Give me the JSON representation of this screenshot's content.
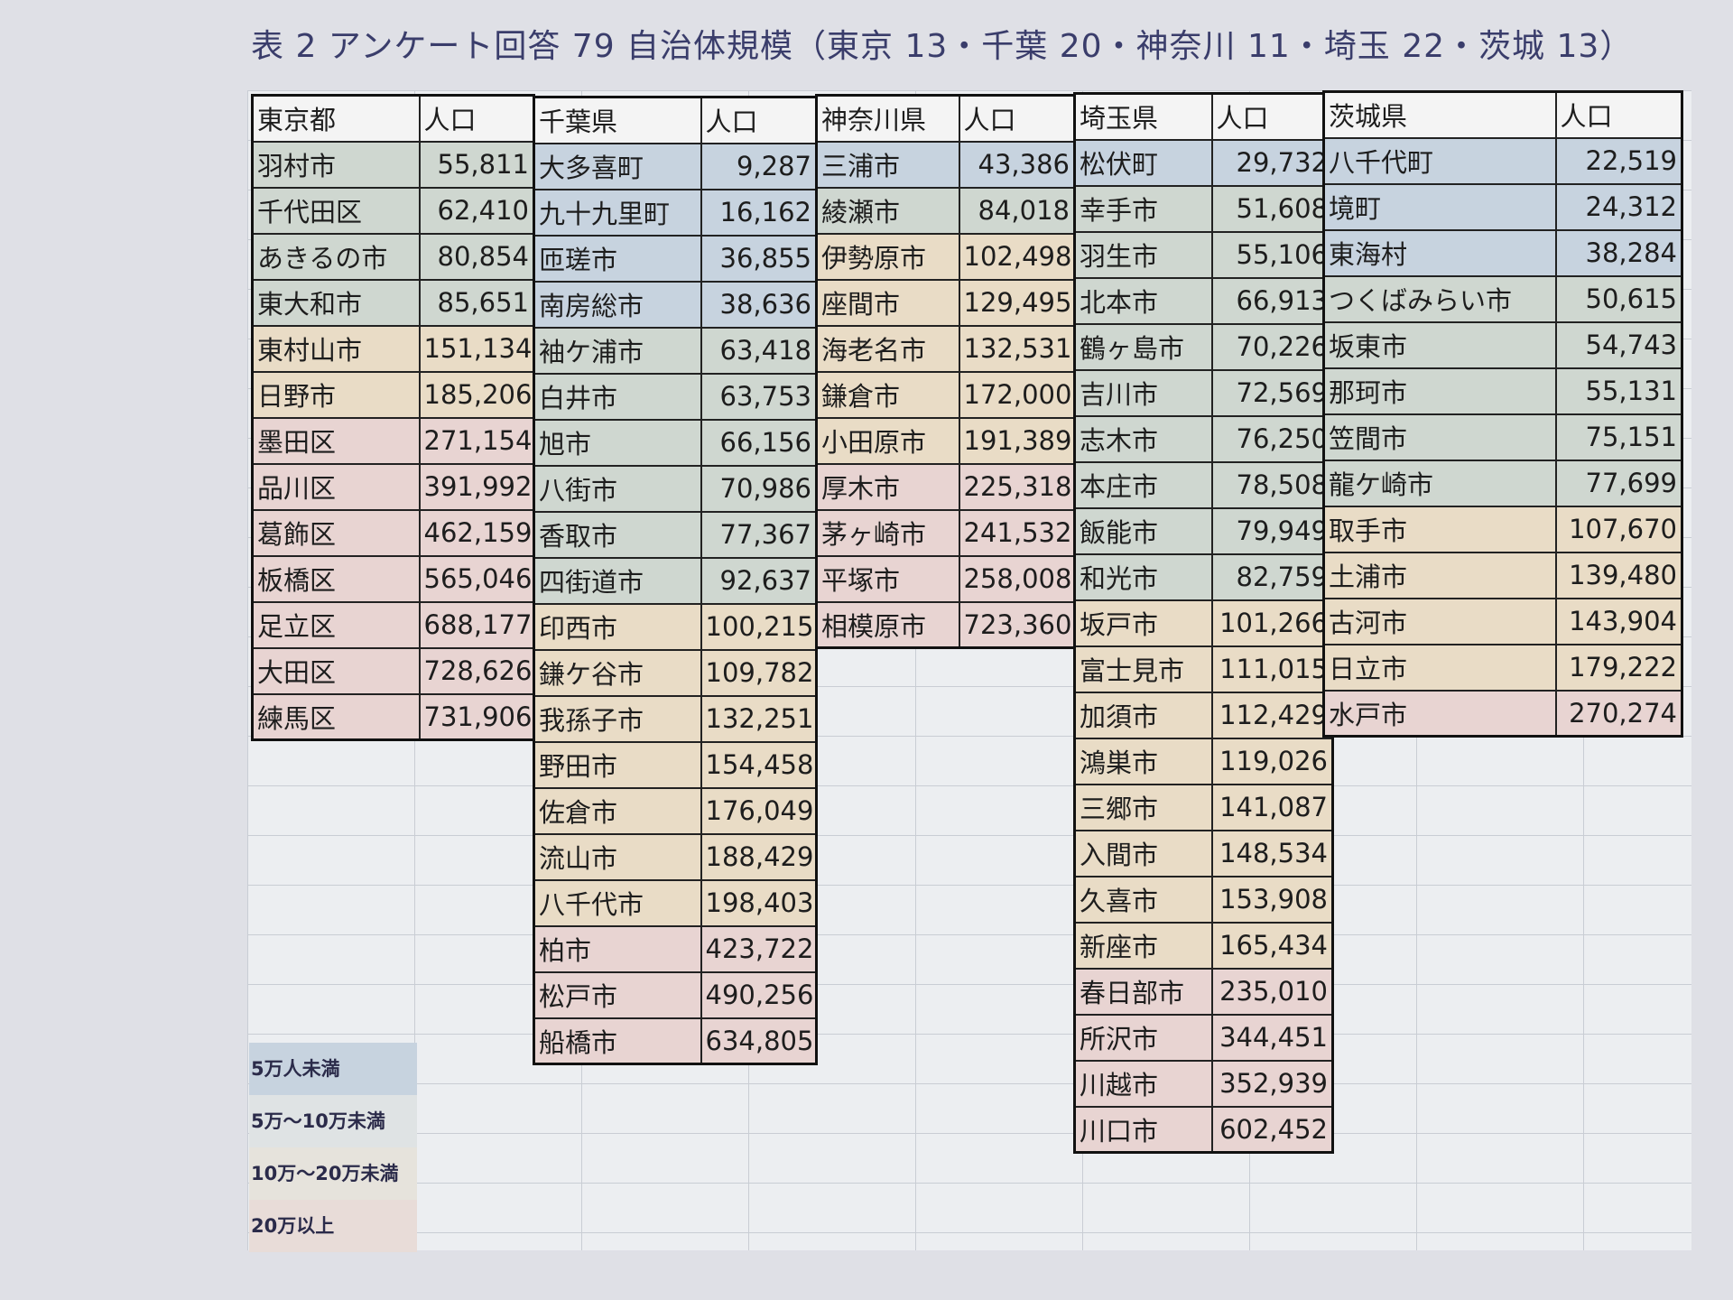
{
  "title": "表 2 アンケート回答 79 自治体規模（東京 13・千葉 20・神奈川 11・埼玉 22・茨城 13）",
  "header_pop": "人口",
  "colors": {
    "under_50k": "#c7d3df",
    "50k_100k": "#cfd7d0",
    "100k_200k": "#e9dcc6",
    "200k_plus": "#e8d4d2"
  },
  "legend": [
    {
      "label": "5万人未満",
      "cls": "c1"
    },
    {
      "label": "5万～10万未満",
      "cls": "c2"
    },
    {
      "label": "10万～20万未満",
      "cls": "c3"
    },
    {
      "label": "20万以上",
      "cls": "c4"
    }
  ],
  "tables": [
    {
      "key": "tokyo",
      "header": "東京都",
      "rows": [
        [
          "羽村市",
          "55,811",
          "c2"
        ],
        [
          "千代田区",
          "62,410",
          "c2"
        ],
        [
          "あきるの市",
          "80,854",
          "c2"
        ],
        [
          "東大和市",
          "85,651",
          "c2"
        ],
        [
          "東村山市",
          "151,134",
          "c3"
        ],
        [
          "日野市",
          "185,206",
          "c3"
        ],
        [
          "墨田区",
          "271,154",
          "c4"
        ],
        [
          "品川区",
          "391,992",
          "c4"
        ],
        [
          "葛飾区",
          "462,159",
          "c4"
        ],
        [
          "板橋区",
          "565,046",
          "c4"
        ],
        [
          "足立区",
          "688,177",
          "c4"
        ],
        [
          "大田区",
          "728,626",
          "c4"
        ],
        [
          "練馬区",
          "731,906",
          "c4"
        ]
      ]
    },
    {
      "key": "chiba",
      "header": "千葉県",
      "rows": [
        [
          "大多喜町",
          "9,287",
          "c1"
        ],
        [
          "九十九里町",
          "16,162",
          "c1"
        ],
        [
          "匝瑳市",
          "36,855",
          "c1"
        ],
        [
          "南房総市",
          "38,636",
          "c1"
        ],
        [
          "袖ケ浦市",
          "63,418",
          "c2"
        ],
        [
          "白井市",
          "63,753",
          "c2"
        ],
        [
          "旭市",
          "66,156",
          "c2"
        ],
        [
          "八街市",
          "70,986",
          "c2"
        ],
        [
          "香取市",
          "77,367",
          "c2"
        ],
        [
          "四街道市",
          "92,637",
          "c2"
        ],
        [
          "印西市",
          "100,215",
          "c3"
        ],
        [
          "鎌ケ谷市",
          "109,782",
          "c3"
        ],
        [
          "我孫子市",
          "132,251",
          "c3"
        ],
        [
          "野田市",
          "154,458",
          "c3"
        ],
        [
          "佐倉市",
          "176,049",
          "c3"
        ],
        [
          "流山市",
          "188,429",
          "c3"
        ],
        [
          "八千代市",
          "198,403",
          "c3"
        ],
        [
          "柏市",
          "423,722",
          "c4"
        ],
        [
          "松戸市",
          "490,256",
          "c4"
        ],
        [
          "船橋市",
          "634,805",
          "c4"
        ]
      ]
    },
    {
      "key": "kanagawa",
      "header": "神奈川県",
      "rows": [
        [
          "三浦市",
          "43,386",
          "c1"
        ],
        [
          "綾瀬市",
          "84,018",
          "c2"
        ],
        [
          "伊勢原市",
          "102,498",
          "c3"
        ],
        [
          "座間市",
          "129,495",
          "c3"
        ],
        [
          "海老名市",
          "132,531",
          "c3"
        ],
        [
          "鎌倉市",
          "172,000",
          "c3"
        ],
        [
          "小田原市",
          "191,389",
          "c3"
        ],
        [
          "厚木市",
          "225,318",
          "c4"
        ],
        [
          "茅ヶ崎市",
          "241,532",
          "c4"
        ],
        [
          "平塚市",
          "258,008",
          "c4"
        ],
        [
          "相模原市",
          "723,360",
          "c4"
        ]
      ]
    },
    {
      "key": "saitama",
      "header": "埼玉県",
      "rows": [
        [
          "松伏町",
          "29,732",
          "c1"
        ],
        [
          "幸手市",
          "51,608",
          "c2"
        ],
        [
          "羽生市",
          "55,106",
          "c2"
        ],
        [
          "北本市",
          "66,913",
          "c2"
        ],
        [
          "鶴ヶ島市",
          "70,226",
          "c2"
        ],
        [
          "吉川市",
          "72,569",
          "c2"
        ],
        [
          "志木市",
          "76,250",
          "c2"
        ],
        [
          "本庄市",
          "78,508",
          "c2"
        ],
        [
          "飯能市",
          "79,949",
          "c2"
        ],
        [
          "和光市",
          "82,759",
          "c2"
        ],
        [
          "坂戸市",
          "101,266",
          "c3"
        ],
        [
          "富士見市",
          "111,015",
          "c3"
        ],
        [
          "加須市",
          "112,429",
          "c3"
        ],
        [
          "鴻巣市",
          "119,026",
          "c3"
        ],
        [
          "三郷市",
          "141,087",
          "c3"
        ],
        [
          "入間市",
          "148,534",
          "c3"
        ],
        [
          "久喜市",
          "153,908",
          "c3"
        ],
        [
          "新座市",
          "165,434",
          "c3"
        ],
        [
          "春日部市",
          "235,010",
          "c4"
        ],
        [
          "所沢市",
          "344,451",
          "c4"
        ],
        [
          "川越市",
          "352,939",
          "c4"
        ],
        [
          "川口市",
          "602,452",
          "c4"
        ]
      ]
    },
    {
      "key": "ibaraki",
      "header": "茨城県",
      "rows": [
        [
          "八千代町",
          "22,519",
          "c1"
        ],
        [
          "境町",
          "24,312",
          "c1"
        ],
        [
          "東海村",
          "38,284",
          "c1"
        ],
        [
          "つくばみらい市",
          "50,615",
          "c2"
        ],
        [
          "坂東市",
          "54,743",
          "c2"
        ],
        [
          "那珂市",
          "55,131",
          "c2"
        ],
        [
          "笠間市",
          "75,151",
          "c2"
        ],
        [
          "龍ケ崎市",
          "77,699",
          "c2"
        ],
        [
          "取手市",
          "107,670",
          "c3"
        ],
        [
          "土浦市",
          "139,480",
          "c3"
        ],
        [
          "古河市",
          "143,904",
          "c3"
        ],
        [
          "日立市",
          "179,222",
          "c3"
        ],
        [
          "水戸市",
          "270,274",
          "c4"
        ]
      ]
    }
  ]
}
